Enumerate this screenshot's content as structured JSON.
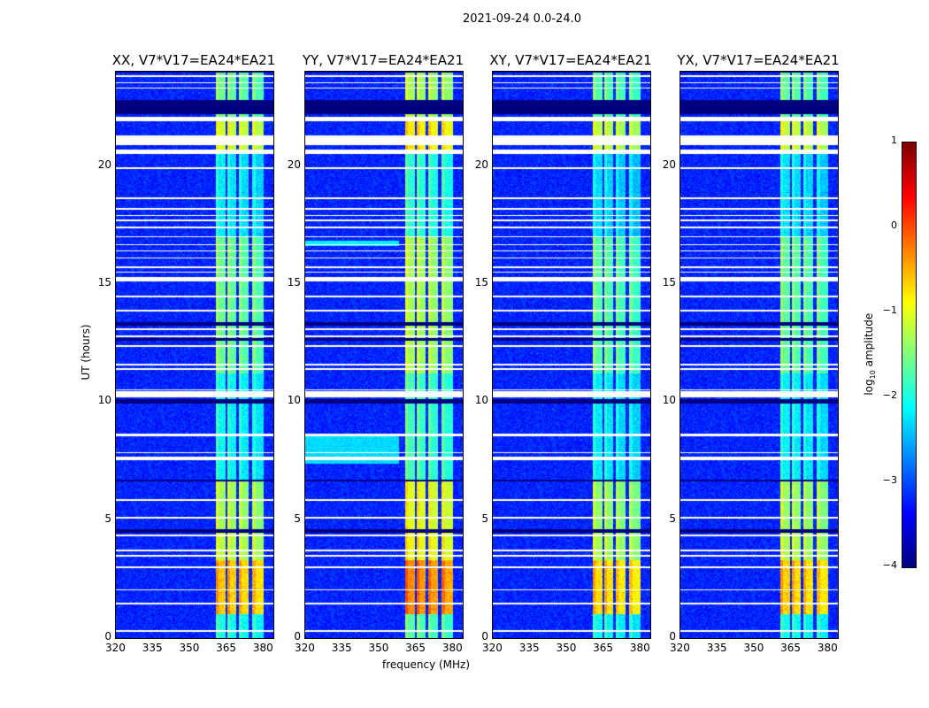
{
  "chart_data": {
    "type": "heatmap",
    "title": "2021-09-24 0.0-24.0",
    "xlabel": "frequency (MHz)",
    "ylabel": "UT (hours)",
    "xlim": [
      320,
      384
    ],
    "ylim": [
      0,
      24
    ],
    "xticks": [
      320,
      335,
      350,
      365,
      380
    ],
    "yticks": [
      0,
      5,
      10,
      15,
      20
    ],
    "panels": [
      {
        "title": "XX, V7*V17=EA24*EA21",
        "band_boost": 0
      },
      {
        "title": "YY, V7*V17=EA24*EA21",
        "band_boost": 0.3,
        "broadband_events": [
          [
            7.4,
            8.6,
            -2.3
          ],
          [
            16.6,
            16.85,
            -2.2
          ]
        ]
      },
      {
        "title": "XY, V7*V17=EA24*EA21",
        "band_boost": -0.1
      },
      {
        "title": "YX, V7*V17=EA24*EA21",
        "band_boost": -0.05
      }
    ],
    "background_log_amplitude": -3.2,
    "bright_channel_bands_mhz": [
      [
        360.5,
        364.5
      ],
      [
        365.3,
        369
      ],
      [
        370,
        374
      ],
      [
        375.5,
        380
      ]
    ],
    "band_log_amplitude_by_time": [
      {
        "hours": [
          0,
          1.0
        ],
        "value": -2.0
      },
      {
        "hours": [
          1.0,
          3.3
        ],
        "value": -0.6
      },
      {
        "hours": [
          3.3,
          4.6
        ],
        "value": -1.2
      },
      {
        "hours": [
          4.6,
          6.7
        ],
        "value": -1.3
      },
      {
        "hours": [
          6.7,
          11.2
        ],
        "value": -2.1
      },
      {
        "hours": [
          11.2,
          17.0
        ],
        "value": -1.6
      },
      {
        "hours": [
          17.0,
          20.7
        ],
        "value": -2.2
      },
      {
        "hours": [
          20.7,
          22.0
        ],
        "value": -1.1
      },
      {
        "hours": [
          22.0,
          24.0
        ],
        "value": -1.6
      }
    ],
    "flagged_white_hours": [
      [
        0.25,
        0.32
      ],
      [
        1.42,
        1.5
      ],
      [
        2.02,
        2.08
      ],
      [
        2.95,
        3.02
      ],
      [
        3.45,
        3.52
      ],
      [
        3.68,
        3.74
      ],
      [
        4.3,
        4.38
      ],
      [
        5.08,
        5.14
      ],
      [
        5.82,
        5.88
      ],
      [
        7.55,
        7.7
      ],
      [
        7.82,
        7.88
      ],
      [
        8.55,
        8.65
      ],
      [
        10.2,
        10.45
      ],
      [
        10.5,
        10.55
      ],
      [
        11.35,
        11.45
      ],
      [
        11.55,
        11.62
      ],
      [
        12.35,
        12.42
      ],
      [
        12.75,
        12.82
      ],
      [
        13.05,
        13.12
      ],
      [
        13.85,
        13.92
      ],
      [
        14.45,
        14.52
      ],
      [
        15.1,
        15.3
      ],
      [
        15.48,
        15.54
      ],
      [
        15.68,
        15.74
      ],
      [
        16.08,
        16.14
      ],
      [
        16.38,
        16.44
      ],
      [
        16.65,
        16.7
      ],
      [
        16.98,
        17.04
      ],
      [
        17.35,
        17.42
      ],
      [
        17.65,
        17.72
      ],
      [
        17.88,
        17.94
      ],
      [
        18.15,
        18.22
      ],
      [
        18.6,
        18.66
      ],
      [
        19.88,
        19.94
      ],
      [
        20.5,
        20.7
      ],
      [
        20.9,
        21.3
      ],
      [
        21.9,
        22.1
      ],
      [
        23.28,
        23.34
      ],
      [
        23.5,
        23.56
      ],
      [
        23.78,
        23.84
      ]
    ],
    "flagged_black_hours": [
      [
        4.48,
        4.6
      ],
      [
        6.62,
        6.72
      ],
      [
        9.92,
        10.12
      ],
      [
        13.25,
        13.4
      ],
      [
        12.6,
        12.7
      ],
      [
        22.2,
        22.8
      ],
      [
        23.95,
        24.0
      ]
    ],
    "colorbar": {
      "label": "log10 amplitude",
      "label_main": "log",
      "label_sub": "10",
      "label_rest": " amplitude",
      "range": [
        -4,
        1
      ],
      "ticks": [
        "1",
        "0",
        "−1",
        "−2",
        "−3",
        "−4"
      ],
      "colormap": "jet"
    }
  }
}
